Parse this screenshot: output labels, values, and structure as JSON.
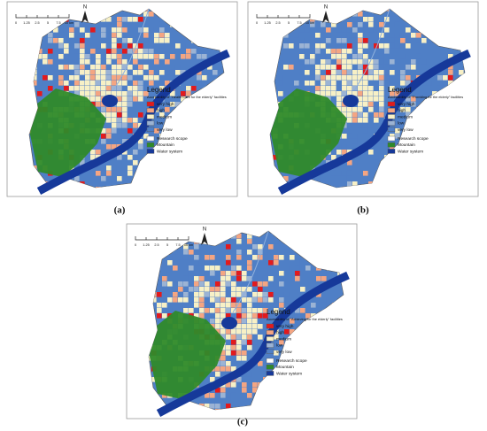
{
  "panels": [
    {
      "label": "(a)",
      "north": "N",
      "scale": [
        "0",
        "1.25",
        "2.5",
        "5",
        "7.5",
        "10 km"
      ],
      "legend": {
        "title": "Legend",
        "subtitle": "Accessibility of \"Health Care for the elderly\" facilities",
        "items": [
          {
            "name": "very high",
            "color": "#e31a1c"
          },
          {
            "name": "high",
            "color": "#f4a582"
          },
          {
            "name": "medium",
            "color": "#f7f0c6"
          },
          {
            "name": "low",
            "color": "#9bb3d4"
          },
          {
            "name": "very low",
            "color": "#4f7fc6"
          },
          {
            "name": "Research scope",
            "color": "#ffffff"
          },
          {
            "name": "Mountain",
            "color": "#2f8a2a"
          },
          {
            "name": "Water system",
            "color": "#16399a"
          }
        ]
      }
    },
    {
      "label": "(b)",
      "north": "N",
      "scale": [
        "0",
        "1.25",
        "2.5",
        "5",
        "7.5",
        "10 km"
      ],
      "legend": {
        "title": "Legend",
        "subtitle": "Accessibility of \"Providing for the elderly\" facilities",
        "items": [
          {
            "name": "very high",
            "color": "#e31a1c"
          },
          {
            "name": "high",
            "color": "#f4a582"
          },
          {
            "name": "medium",
            "color": "#f7f0c6"
          },
          {
            "name": "low",
            "color": "#9bb3d4"
          },
          {
            "name": "very low",
            "color": "#4f7fc6"
          },
          {
            "name": "Research scope",
            "color": "#ffffff"
          },
          {
            "name": "Mountain",
            "color": "#2f8a2a"
          },
          {
            "name": "Water system",
            "color": "#16399a"
          }
        ]
      }
    },
    {
      "label": "(c)",
      "north": "N",
      "scale": [
        "0",
        "1.25",
        "2.5",
        "5",
        "7.5",
        "10 km"
      ],
      "legend": {
        "title": "Legend",
        "subtitle": "Accessibility of \"Achieving for the elderly\" facilities",
        "items": [
          {
            "name": "very high",
            "color": "#e31a1c"
          },
          {
            "name": "high",
            "color": "#f4a582"
          },
          {
            "name": "medium",
            "color": "#f7f0c6"
          },
          {
            "name": "low",
            "color": "#9bb3d4"
          },
          {
            "name": "very low",
            "color": "#4f7fc6"
          },
          {
            "name": "Research scope",
            "color": "#ffffff"
          },
          {
            "name": "Mountain",
            "color": "#2f8a2a"
          },
          {
            "name": "Water system",
            "color": "#16399a"
          }
        ]
      }
    }
  ]
}
